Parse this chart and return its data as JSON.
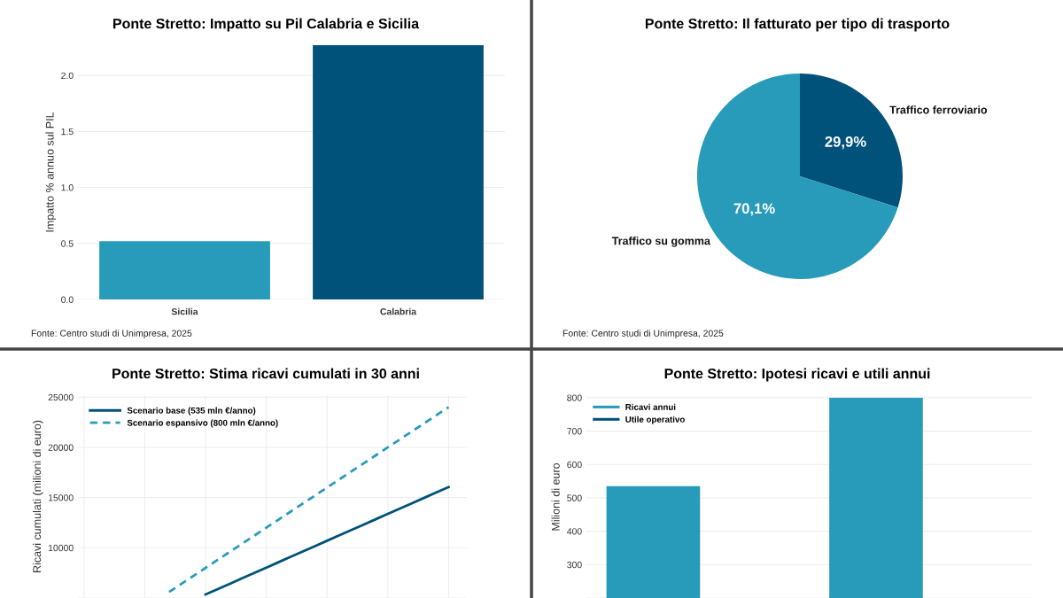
{
  "chart_data": [
    {
      "type": "bar",
      "title": "Ponte Stretto: Impatto su Pil Calabria e Sicilia",
      "ylabel": "Impatto % annuo sul PIL",
      "categories": [
        "Sicilia",
        "Calabria"
      ],
      "values": [
        0.52,
        2.27
      ],
      "colors": [
        "#279bb9",
        "#00527a"
      ],
      "ylim": [
        0,
        2.27
      ],
      "yticks": [
        {
          "value": 0,
          "label": "0.0"
        },
        {
          "value": 0.5,
          "label": "0.5"
        },
        {
          "value": 1,
          "label": "1.0"
        },
        {
          "value": 1.5,
          "label": "1.5"
        },
        {
          "value": 2,
          "label": "2.0"
        }
      ],
      "grid": "y",
      "annotations": [
        "Fonte: Centro studi di Unimpresa, 2025"
      ]
    },
    {
      "type": "pie",
      "title": "Ponte Stretto: Il fatturato per tipo di trasporto",
      "categories": [
        "Traffico ferroviario",
        "Traffico su gomma"
      ],
      "values": [
        29.9,
        70.1
      ],
      "colors": [
        "#00527a",
        "#279bb9"
      ],
      "value_labels": [
        "29,9%",
        "70,1%"
      ],
      "annotations": [
        "Fonte: Centro studi di Unimpresa, 2025"
      ]
    },
    {
      "type": "line",
      "title": "Ponte Stretto: Stima ricavi cumulati in 30 anni",
      "ylabel": "Ricavi cumulati (milioni di euro)",
      "categories": [
        null,
        null,
        null,
        null,
        null,
        null,
        null,
        null,
        null,
        null,
        null,
        null,
        null,
        null,
        null,
        null,
        null,
        null,
        null,
        null,
        null,
        null,
        null,
        null,
        null,
        null,
        null,
        null,
        null,
        null,
        null
      ],
      "series": [
        {
          "name": "Scenario base (535 mln €/anno)",
          "color": "#00527a",
          "values": [
            null,
            null,
            null,
            null,
            null,
            null,
            null,
            null,
            null,
            null,
            5350,
            5885,
            6420,
            6955,
            7490,
            8025,
            8560,
            9095,
            9630,
            10165,
            10700,
            11235,
            11770,
            12305,
            12840,
            13375,
            13910,
            14445,
            14980,
            15515,
            16050
          ],
          "line_style": "solid"
        },
        {
          "name": "Scenario espansivo (800 mln €/anno)",
          "color": "#279bb9",
          "values": [
            null,
            null,
            null,
            null,
            null,
            null,
            null,
            5600,
            6400,
            7200,
            8000,
            8800,
            9600,
            10400,
            11200,
            12000,
            12800,
            13600,
            14400,
            15200,
            16000,
            16800,
            17600,
            18400,
            19200,
            20000,
            20800,
            21600,
            22400,
            23200,
            24000
          ],
          "line_style": "dashed"
        }
      ],
      "ylim": [
        5000,
        25200
      ],
      "yticks": [
        {
          "value": 5000,
          "label": null
        },
        10000,
        15000,
        20000,
        25000
      ],
      "tick_labels": "y",
      "grid": true,
      "legend": "top left"
    },
    {
      "type": "bar",
      "title": "Ponte Stretto: Ipotesi ricavi e utili annui",
      "ylabel": "Milioni di euro",
      "categories": [
        null,
        null
      ],
      "series": [
        {
          "name": "Ricavi annui",
          "color": "#279bb9",
          "values": [
            535,
            800
          ]
        },
        {
          "name": "Utile operativo",
          "color": "#00527a",
          "values": [
            null,
            null
          ]
        }
      ],
      "ylim": [
        200,
        805
      ],
      "yticks": [
        {
          "value": 200,
          "label": null
        },
        300,
        400,
        500,
        600,
        700,
        800
      ],
      "tick_labels": "y",
      "grid": "y",
      "legend": "top left"
    }
  ]
}
